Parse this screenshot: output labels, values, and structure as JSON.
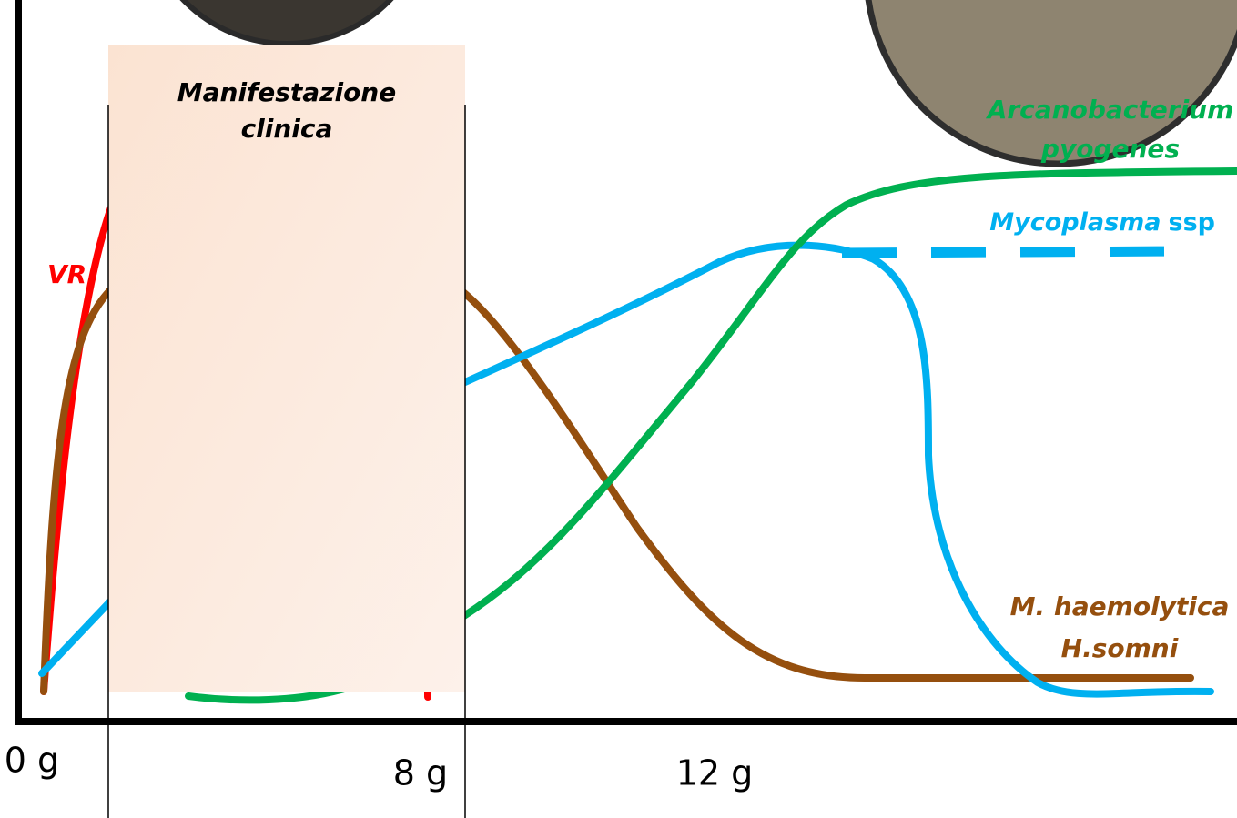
{
  "box_label": [
    "Manifestazione",
    "clinica"
  ],
  "labels": {
    "vr": "VR",
    "arcanobacterium": [
      "Arcanobacterium",
      "pyogenes"
    ],
    "mycoplasma": {
      "name": "Mycoplasma",
      "suffix": "ssp"
    },
    "pasteurella": [
      "M. haemolytica",
      "H.somni"
    ]
  },
  "x_axis": {
    "ticks": [
      "0 g",
      "8 g",
      "12 g"
    ]
  }
}
